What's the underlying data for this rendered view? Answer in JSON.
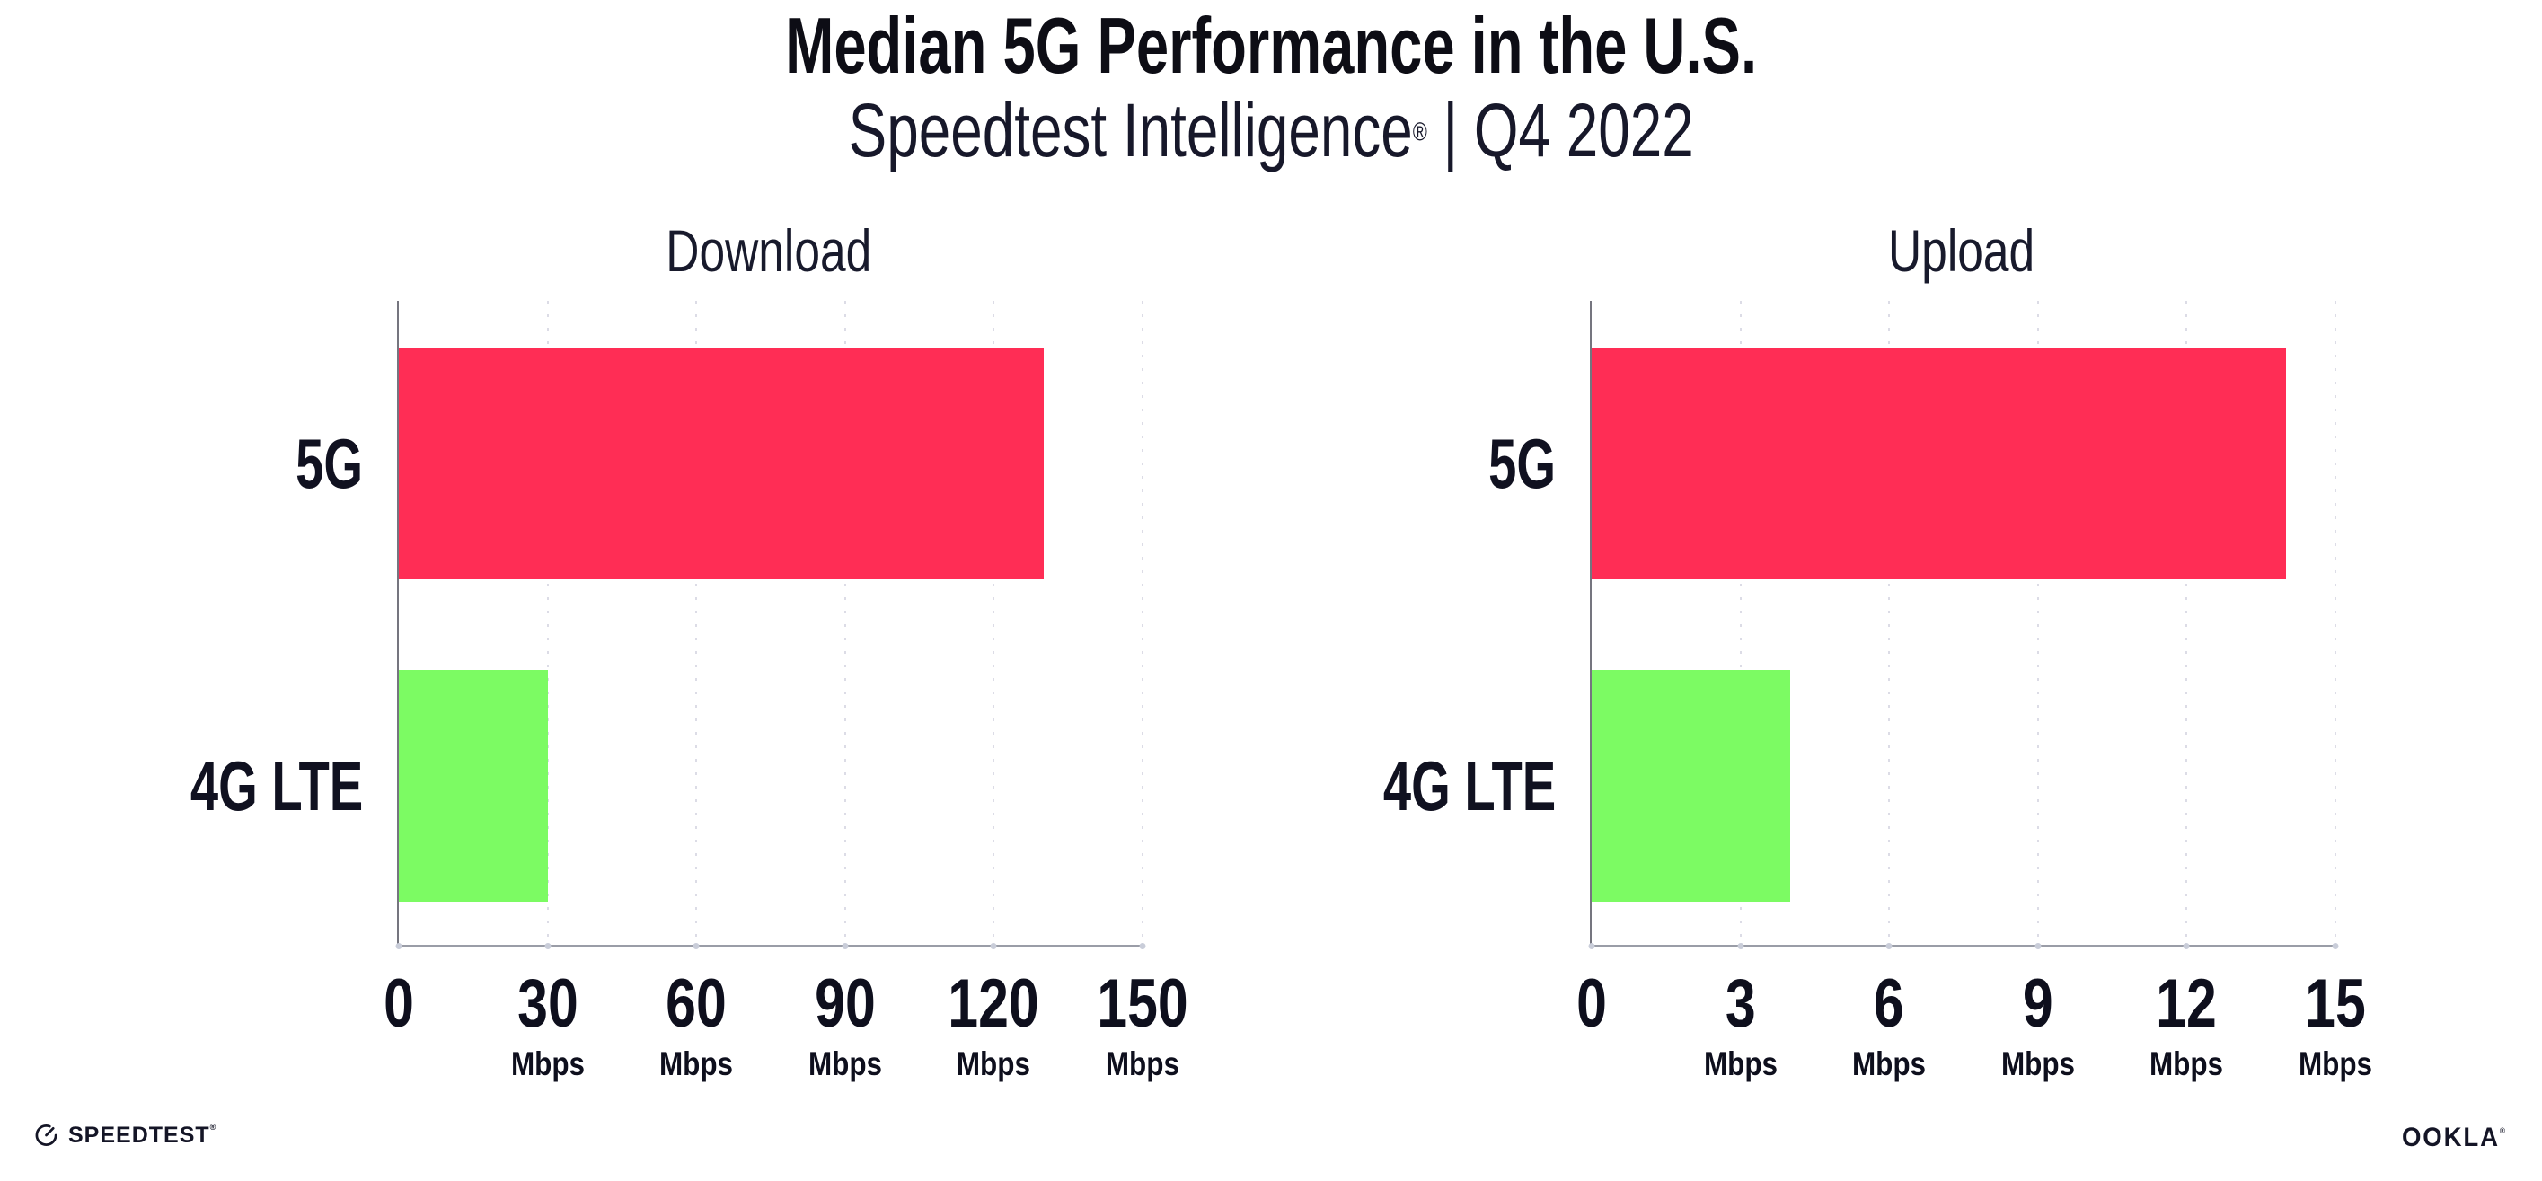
{
  "header": {
    "title": "Median 5G Performance in the U.S.",
    "subtitle_brand": "Speedtest Intelligence",
    "subtitle_reg": "®",
    "subtitle_rest": " | Q4 2022"
  },
  "footer": {
    "speedtest_icon": "gauge-icon",
    "speedtest_label": "SPEEDTEST",
    "speedtest_reg": "®",
    "ookla_label": "OOKLA",
    "ookla_reg": "®"
  },
  "colors": {
    "bar_5g": "#FF2D55",
    "bar_4g_lte": "#7CFB63",
    "text": "#141526",
    "axis": "#9A9DA7",
    "gridline_dots": "#DCDCE6"
  },
  "chart_data": [
    {
      "type": "bar",
      "orientation": "horizontal",
      "title": "Download",
      "categories": [
        "5G",
        "4G LTE"
      ],
      "values": [
        130,
        30
      ],
      "unit": "Mbps",
      "xlabel": "",
      "ylabel": "",
      "xlim": [
        0,
        150
      ],
      "ticks": [
        0,
        30,
        60,
        90,
        120,
        150
      ],
      "bar_colors": [
        "#FF2D55",
        "#7CFB63"
      ],
      "grid": "vertical-dotted",
      "legend": "none"
    },
    {
      "type": "bar",
      "orientation": "horizontal",
      "title": "Upload",
      "categories": [
        "5G",
        "4G LTE"
      ],
      "values": [
        14,
        4
      ],
      "unit": "Mbps",
      "xlabel": "",
      "ylabel": "",
      "xlim": [
        0,
        15
      ],
      "ticks": [
        0,
        3,
        6,
        9,
        12,
        15
      ],
      "bar_colors": [
        "#FF2D55",
        "#7CFB63"
      ],
      "grid": "vertical-dotted",
      "legend": "none"
    }
  ]
}
